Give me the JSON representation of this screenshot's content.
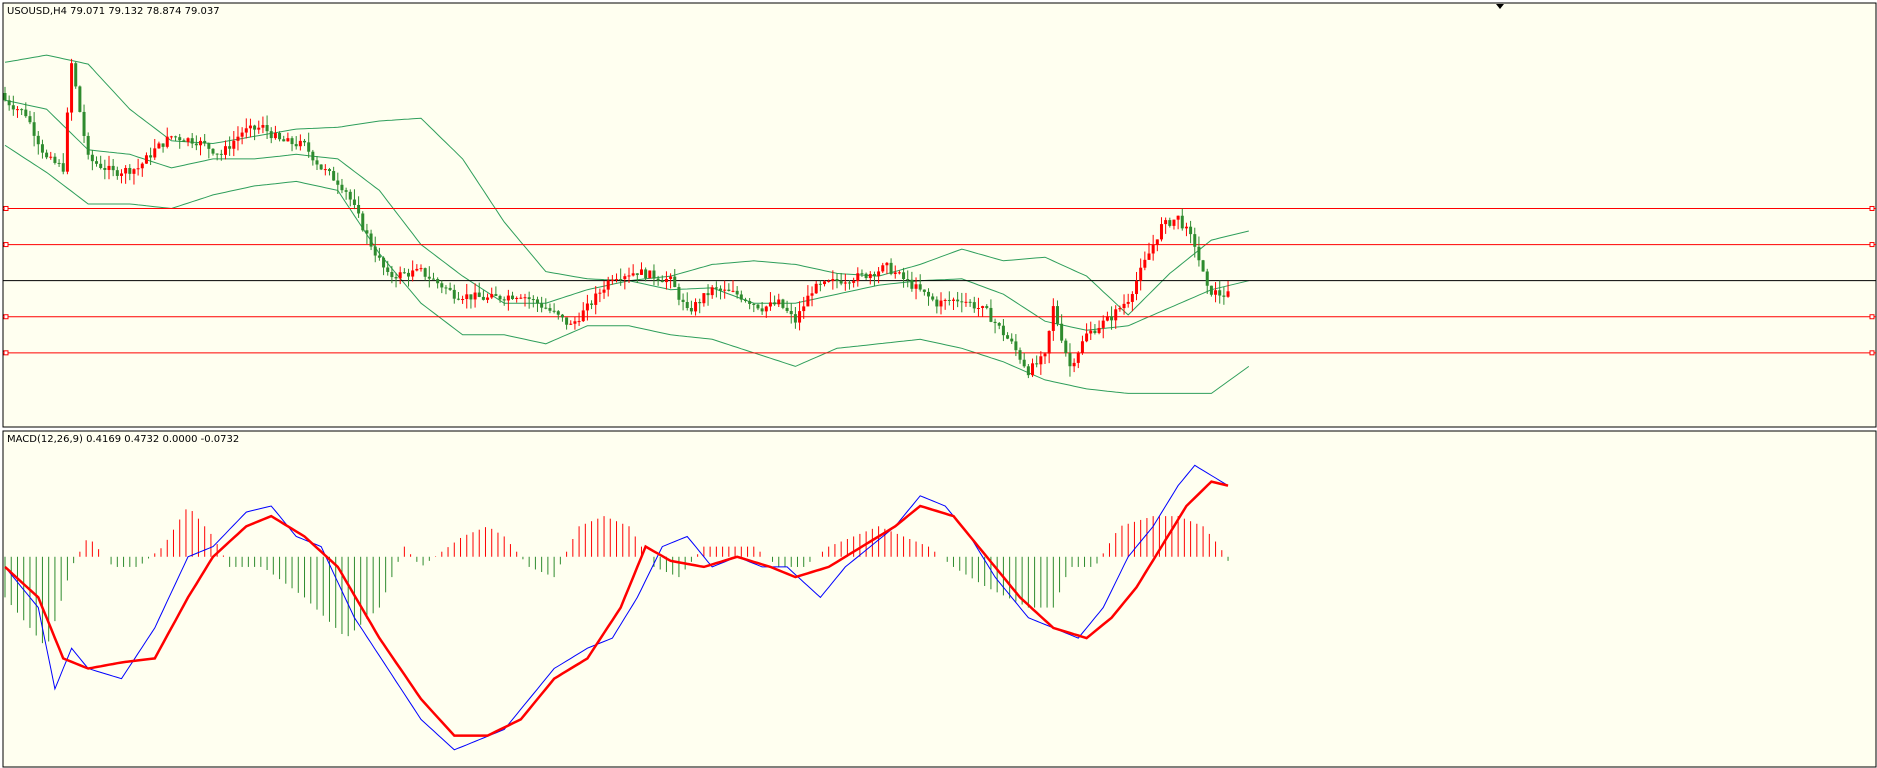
{
  "main_panel": {
    "title": "USOUSD,H4  79.071 79.132 78.874 79.037"
  },
  "macd_panel": {
    "title": "MACD(12,26,9) 0.4169 0.4732 0.0000 -0.0732"
  },
  "colors": {
    "background": "#FFFFF0",
    "border": "#000000",
    "bull": "#FF0000",
    "bear": "#2E8B2E",
    "bands": "#2E9E5B",
    "level_lines": "#FF0000",
    "price_line": "#000000",
    "macd_line": "#0000FF",
    "signal_line": "#FF0000",
    "hist_pos": "#FF0000",
    "hist_neg": "#2E8B2E"
  },
  "chart_data": [
    {
      "type": "candlestick",
      "symbol": "USOUSD",
      "timeframe": "H4",
      "ohlc_last": {
        "open": 79.071,
        "high": 79.132,
        "low": 78.874,
        "close": 79.037
      },
      "ylim": [
        77.6,
        82.2
      ],
      "grid": false,
      "horizontal_levels": [
        80.0,
        79.6,
        78.8,
        78.4
      ],
      "current_price_line": 79.2,
      "bollinger": {
        "upper": [
          [
            0,
            81.62
          ],
          [
            10,
            81.7
          ],
          [
            20,
            81.6
          ],
          [
            30,
            81.1
          ],
          [
            40,
            80.75
          ],
          [
            50,
            80.72
          ],
          [
            60,
            80.8
          ],
          [
            70,
            80.88
          ],
          [
            80,
            80.9
          ],
          [
            90,
            80.97
          ],
          [
            100,
            81.0
          ],
          [
            110,
            80.55
          ],
          [
            120,
            79.85
          ],
          [
            130,
            79.3
          ],
          [
            140,
            79.22
          ],
          [
            150,
            79.2
          ],
          [
            160,
            79.25
          ],
          [
            170,
            79.38
          ],
          [
            180,
            79.42
          ],
          [
            190,
            79.38
          ],
          [
            200,
            79.28
          ],
          [
            210,
            79.25
          ],
          [
            220,
            79.38
          ],
          [
            230,
            79.55
          ],
          [
            240,
            79.42
          ],
          [
            250,
            79.46
          ],
          [
            260,
            79.25
          ],
          [
            270,
            78.82
          ],
          [
            280,
            79.28
          ],
          [
            290,
            79.65
          ],
          [
            299,
            79.75
          ]
        ],
        "middle": [
          [
            0,
            81.2
          ],
          [
            10,
            81.1
          ],
          [
            20,
            80.65
          ],
          [
            30,
            80.6
          ],
          [
            40,
            80.45
          ],
          [
            50,
            80.55
          ],
          [
            60,
            80.55
          ],
          [
            70,
            80.6
          ],
          [
            80,
            80.55
          ],
          [
            90,
            80.2
          ],
          [
            100,
            79.6
          ],
          [
            110,
            79.25
          ],
          [
            120,
            78.95
          ],
          [
            130,
            78.95
          ],
          [
            140,
            79.1
          ],
          [
            150,
            79.2
          ],
          [
            160,
            79.1
          ],
          [
            170,
            79.12
          ],
          [
            180,
            78.95
          ],
          [
            190,
            78.95
          ],
          [
            200,
            79.05
          ],
          [
            210,
            79.15
          ],
          [
            220,
            79.2
          ],
          [
            230,
            79.22
          ],
          [
            240,
            79.05
          ],
          [
            250,
            78.75
          ],
          [
            260,
            78.65
          ],
          [
            270,
            78.7
          ],
          [
            280,
            78.9
          ],
          [
            290,
            79.1
          ],
          [
            299,
            79.2
          ]
        ],
        "lower": [
          [
            0,
            80.7
          ],
          [
            10,
            80.4
          ],
          [
            20,
            80.05
          ],
          [
            30,
            80.05
          ],
          [
            40,
            80.0
          ],
          [
            50,
            80.15
          ],
          [
            60,
            80.25
          ],
          [
            70,
            80.3
          ],
          [
            80,
            80.2
          ],
          [
            90,
            79.5
          ],
          [
            100,
            78.95
          ],
          [
            110,
            78.6
          ],
          [
            120,
            78.6
          ],
          [
            130,
            78.5
          ],
          [
            140,
            78.7
          ],
          [
            150,
            78.7
          ],
          [
            160,
            78.6
          ],
          [
            170,
            78.55
          ],
          [
            180,
            78.4
          ],
          [
            190,
            78.25
          ],
          [
            200,
            78.45
          ],
          [
            210,
            78.5
          ],
          [
            220,
            78.55
          ],
          [
            230,
            78.45
          ],
          [
            240,
            78.3
          ],
          [
            250,
            78.1
          ],
          [
            260,
            78.0
          ],
          [
            270,
            77.95
          ],
          [
            280,
            77.95
          ],
          [
            290,
            77.95
          ],
          [
            299,
            78.25
          ]
        ]
      },
      "close_path": [
        [
          0,
          81.2
        ],
        [
          5,
          81.05
        ],
        [
          10,
          80.55
        ],
        [
          14,
          80.45
        ],
        [
          16,
          81.6
        ],
        [
          20,
          80.55
        ],
        [
          26,
          80.4
        ],
        [
          32,
          80.45
        ],
        [
          36,
          80.65
        ],
        [
          40,
          80.8
        ],
        [
          46,
          80.75
        ],
        [
          52,
          80.6
        ],
        [
          57,
          80.85
        ],
        [
          62,
          80.9
        ],
        [
          66,
          80.75
        ],
        [
          72,
          80.7
        ],
        [
          76,
          80.45
        ],
        [
          80,
          80.3
        ],
        [
          82,
          80.2
        ],
        [
          86,
          79.8
        ],
        [
          88,
          79.6
        ],
        [
          92,
          79.25
        ],
        [
          100,
          79.3
        ],
        [
          108,
          79.05
        ],
        [
          116,
          79.0
        ],
        [
          124,
          79.05
        ],
        [
          130,
          78.9
        ],
        [
          136,
          78.7
        ],
        [
          140,
          78.9
        ],
        [
          146,
          79.25
        ],
        [
          152,
          79.3
        ],
        [
          160,
          79.2
        ],
        [
          164,
          78.85
        ],
        [
          170,
          79.1
        ],
        [
          176,
          79.05
        ],
        [
          182,
          78.9
        ],
        [
          186,
          78.95
        ],
        [
          190,
          78.75
        ],
        [
          194,
          79.1
        ],
        [
          200,
          79.2
        ],
        [
          206,
          79.25
        ],
        [
          212,
          79.35
        ],
        [
          218,
          79.15
        ],
        [
          224,
          78.95
        ],
        [
          230,
          79.0
        ],
        [
          236,
          78.85
        ],
        [
          242,
          78.5
        ],
        [
          246,
          78.2
        ],
        [
          250,
          78.35
        ],
        [
          252,
          78.9
        ],
        [
          256,
          78.25
        ],
        [
          260,
          78.6
        ],
        [
          266,
          78.8
        ],
        [
          270,
          79.0
        ],
        [
          274,
          79.4
        ],
        [
          278,
          79.8
        ],
        [
          282,
          79.9
        ],
        [
          286,
          79.6
        ],
        [
          289,
          79.1
        ],
        [
          292,
          79.05
        ],
        [
          294,
          79.04
        ]
      ]
    },
    {
      "type": "macd",
      "params": [
        12,
        26,
        9
      ],
      "values": {
        "macd": 0.4169,
        "signal": 0.4732,
        "osma": 0.0,
        "hist": -0.0732
      },
      "ylim": [
        -1.0,
        0.55
      ],
      "macd_series": [
        [
          0,
          -0.05
        ],
        [
          8,
          -0.25
        ],
        [
          12,
          -0.65
        ],
        [
          16,
          -0.45
        ],
        [
          20,
          -0.55
        ],
        [
          28,
          -0.6
        ],
        [
          36,
          -0.35
        ],
        [
          44,
          0.0
        ],
        [
          50,
          0.05
        ],
        [
          58,
          0.22
        ],
        [
          64,
          0.25
        ],
        [
          70,
          0.1
        ],
        [
          76,
          0.05
        ],
        [
          84,
          -0.3
        ],
        [
          92,
          -0.55
        ],
        [
          100,
          -0.8
        ],
        [
          108,
          -0.95
        ],
        [
          114,
          -0.9
        ],
        [
          120,
          -0.85
        ],
        [
          126,
          -0.7
        ],
        [
          132,
          -0.55
        ],
        [
          140,
          -0.45
        ],
        [
          146,
          -0.4
        ],
        [
          152,
          -0.2
        ],
        [
          158,
          0.05
        ],
        [
          164,
          0.1
        ],
        [
          170,
          -0.05
        ],
        [
          176,
          0.0
        ],
        [
          182,
          -0.05
        ],
        [
          188,
          -0.05
        ],
        [
          196,
          -0.2
        ],
        [
          202,
          -0.05
        ],
        [
          208,
          0.05
        ],
        [
          214,
          0.15
        ],
        [
          220,
          0.3
        ],
        [
          226,
          0.25
        ],
        [
          232,
          0.1
        ],
        [
          238,
          -0.1
        ],
        [
          246,
          -0.3
        ],
        [
          252,
          -0.35
        ],
        [
          258,
          -0.4
        ],
        [
          264,
          -0.25
        ],
        [
          270,
          0.0
        ],
        [
          276,
          0.15
        ],
        [
          282,
          0.35
        ],
        [
          286,
          0.45
        ],
        [
          290,
          0.4
        ],
        [
          294,
          0.35
        ]
      ],
      "signal_series": [
        [
          0,
          -0.05
        ],
        [
          8,
          -0.2
        ],
        [
          14,
          -0.5
        ],
        [
          20,
          -0.55
        ],
        [
          28,
          -0.52
        ],
        [
          36,
          -0.5
        ],
        [
          44,
          -0.2
        ],
        [
          50,
          0.0
        ],
        [
          58,
          0.15
        ],
        [
          64,
          0.2
        ],
        [
          72,
          0.1
        ],
        [
          80,
          -0.05
        ],
        [
          90,
          -0.4
        ],
        [
          100,
          -0.7
        ],
        [
          108,
          -0.88
        ],
        [
          116,
          -0.88
        ],
        [
          124,
          -0.8
        ],
        [
          132,
          -0.6
        ],
        [
          140,
          -0.5
        ],
        [
          148,
          -0.25
        ],
        [
          154,
          0.05
        ],
        [
          160,
          -0.02
        ],
        [
          168,
          -0.05
        ],
        [
          176,
          0.0
        ],
        [
          184,
          -0.05
        ],
        [
          190,
          -0.1
        ],
        [
          198,
          -0.05
        ],
        [
          206,
          0.05
        ],
        [
          214,
          0.15
        ],
        [
          220,
          0.25
        ],
        [
          228,
          0.2
        ],
        [
          236,
          0.0
        ],
        [
          244,
          -0.2
        ],
        [
          252,
          -0.35
        ],
        [
          260,
          -0.4
        ],
        [
          266,
          -0.3
        ],
        [
          272,
          -0.15
        ],
        [
          278,
          0.05
        ],
        [
          284,
          0.25
        ],
        [
          290,
          0.37
        ],
        [
          294,
          0.35
        ]
      ],
      "hist_amplitude": [
        [
          0,
          -0.2
        ],
        [
          10,
          -0.45
        ],
        [
          16,
          -0.05
        ],
        [
          20,
          0.1
        ],
        [
          26,
          -0.05
        ],
        [
          32,
          -0.05
        ],
        [
          38,
          0.05
        ],
        [
          44,
          0.25
        ],
        [
          50,
          0.1
        ],
        [
          54,
          -0.05
        ],
        [
          62,
          -0.05
        ],
        [
          72,
          -0.2
        ],
        [
          82,
          -0.4
        ],
        [
          90,
          -0.25
        ],
        [
          96,
          0.05
        ],
        [
          100,
          -0.05
        ],
        [
          110,
          0.1
        ],
        [
          116,
          0.15
        ],
        [
          120,
          0.1
        ],
        [
          126,
          -0.05
        ],
        [
          132,
          -0.1
        ],
        [
          138,
          0.15
        ],
        [
          144,
          0.2
        ],
        [
          150,
          0.15
        ],
        [
          156,
          -0.05
        ],
        [
          162,
          -0.1
        ],
        [
          168,
          0.05
        ],
        [
          174,
          0.05
        ],
        [
          180,
          0.05
        ],
        [
          186,
          -0.05
        ],
        [
          192,
          -0.05
        ],
        [
          198,
          0.05
        ],
        [
          204,
          0.1
        ],
        [
          210,
          0.15
        ],
        [
          216,
          0.1
        ],
        [
          222,
          0.05
        ],
        [
          228,
          -0.05
        ],
        [
          236,
          -0.15
        ],
        [
          246,
          -0.25
        ],
        [
          252,
          -0.25
        ],
        [
          256,
          -0.05
        ],
        [
          262,
          -0.05
        ],
        [
          268,
          0.15
        ],
        [
          276,
          0.2
        ],
        [
          282,
          0.2
        ],
        [
          288,
          0.15
        ],
        [
          292,
          0.05
        ],
        [
          294,
          -0.02
        ]
      ]
    }
  ]
}
